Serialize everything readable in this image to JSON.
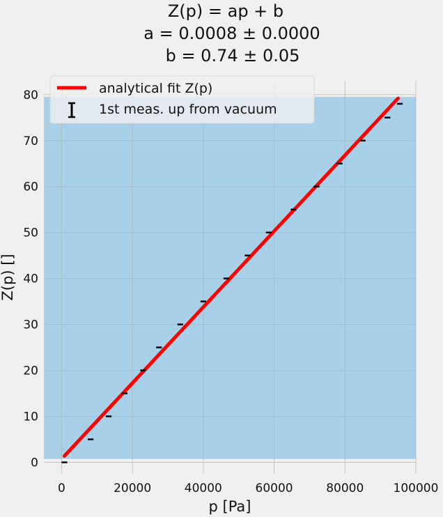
{
  "chart_data": {
    "type": "scatter",
    "title_lines": [
      "Z(p) = ap + b",
      "a = 0.0008 ± 0.0000",
      "b = 0.74 ± 0.05"
    ],
    "xlabel": "p [Pa]",
    "ylabel": "Z(p) []",
    "xlim": [
      -5000,
      100000
    ],
    "ylim": [
      -2.5,
      83
    ],
    "xticks": [
      0,
      20000,
      40000,
      60000,
      80000,
      100000
    ],
    "xtick_labels": [
      "0",
      "20000",
      "40000",
      "60000",
      "80000",
      "100000"
    ],
    "yticks": [
      0,
      10,
      20,
      30,
      40,
      50,
      60,
      70,
      80
    ],
    "ytick_labels": [
      "0",
      "10",
      "20",
      "30",
      "40",
      "50",
      "60",
      "70",
      "80"
    ],
    "grid": true,
    "legend_position": "top-left",
    "shaded_band": {
      "ymin": 0.74,
      "ymax": 79.5,
      "color": "#a8d0e8"
    },
    "series": [
      {
        "name": "analytical fit Z(p)",
        "kind": "line",
        "color": "#ff0000",
        "x": [
          800,
          95000
        ],
        "y": [
          1.38,
          79.2
        ]
      },
      {
        "name": "1st meas. up from vacuum",
        "kind": "errorbar",
        "color": "#000000",
        "x": [
          800,
          8200,
          13300,
          17800,
          23000,
          27500,
          33500,
          40000,
          46500,
          52500,
          58500,
          65500,
          72000,
          78500,
          85000,
          92000,
          95500
        ],
        "y": [
          0,
          5,
          10,
          15,
          20,
          25,
          30,
          35,
          40,
          45,
          50,
          55,
          60,
          65,
          70,
          75,
          78
        ],
        "xerr": 800
      }
    ]
  }
}
